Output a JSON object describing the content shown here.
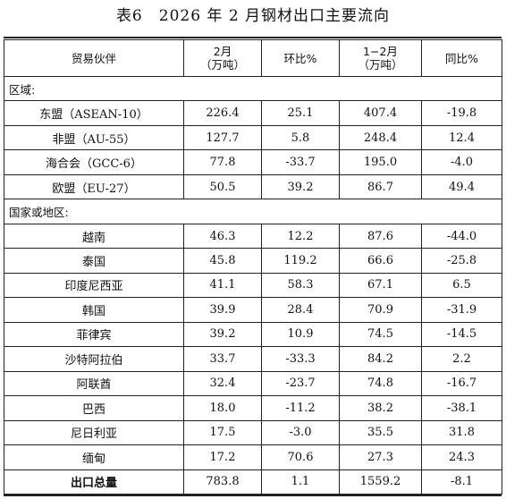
{
  "title": "表6　2026 年 2 月钢材出口主要流向",
  "headers": {
    "partner": "贸易伙伴",
    "feb_line1": "2月",
    "feb_line2": "（万吨）",
    "mom": "环比%",
    "jan_feb_line1": "1−2月",
    "jan_feb_line2": "（万吨）",
    "yoy": "同比%"
  },
  "sections": [
    {
      "label": "区域:",
      "rows": [
        {
          "name": "东盟（ASEAN-10）",
          "feb": "226.4",
          "mom": "25.1",
          "jan_feb": "407.4",
          "yoy": "-19.8"
        },
        {
          "name": "非盟（AU-55）",
          "feb": "127.7",
          "mom": "5.8",
          "jan_feb": "248.4",
          "yoy": "12.4"
        },
        {
          "name": "海合会（GCC-6）",
          "feb": "77.8",
          "mom": "-33.7",
          "jan_feb": "195.0",
          "yoy": "-4.0"
        },
        {
          "name": "欧盟（EU-27）",
          "feb": "50.5",
          "mom": "39.2",
          "jan_feb": "86.7",
          "yoy": "49.4"
        }
      ]
    },
    {
      "label": "国家或地区:",
      "rows": [
        {
          "name": "越南",
          "feb": "46.3",
          "mom": "12.2",
          "jan_feb": "87.6",
          "yoy": "-44.0"
        },
        {
          "name": "泰国",
          "feb": "45.8",
          "mom": "119.2",
          "jan_feb": "66.6",
          "yoy": "-25.8"
        },
        {
          "name": "印度尼西亚",
          "feb": "41.1",
          "mom": "58.3",
          "jan_feb": "67.1",
          "yoy": "6.5"
        },
        {
          "name": "韩国",
          "feb": "39.9",
          "mom": "28.4",
          "jan_feb": "70.9",
          "yoy": "-31.9"
        },
        {
          "name": "菲律宾",
          "feb": "39.2",
          "mom": "10.9",
          "jan_feb": "74.5",
          "yoy": "-14.5"
        },
        {
          "name": "沙特阿拉伯",
          "feb": "33.7",
          "mom": "-33.3",
          "jan_feb": "84.2",
          "yoy": "2.2"
        },
        {
          "name": "阿联酋",
          "feb": "32.4",
          "mom": "-23.7",
          "jan_feb": "74.8",
          "yoy": "-16.7"
        },
        {
          "name": "巴西",
          "feb": "18.0",
          "mom": "-11.2",
          "jan_feb": "38.2",
          "yoy": "-38.1"
        },
        {
          "name": "尼日利亚",
          "feb": "17.5",
          "mom": "-3.0",
          "jan_feb": "35.5",
          "yoy": "31.8"
        },
        {
          "name": "缅甸",
          "feb": "17.2",
          "mom": "70.6",
          "jan_feb": "27.3",
          "yoy": "24.3"
        }
      ]
    }
  ],
  "total": {
    "name": "出口总量",
    "feb": "783.8",
    "mom": "1.1",
    "jan_feb": "1559.2",
    "yoy": "-8.1"
  }
}
